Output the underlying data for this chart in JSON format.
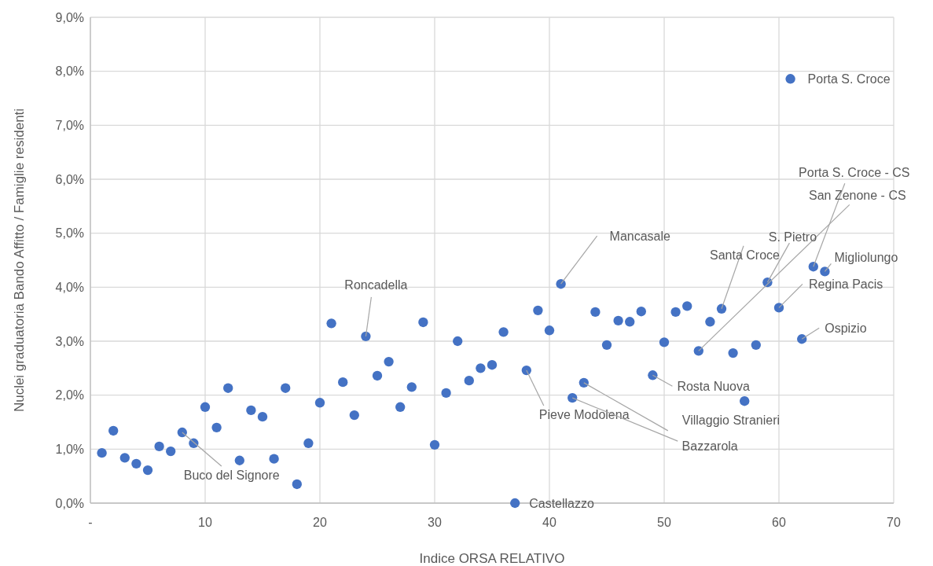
{
  "chart_data": {
    "type": "scatter",
    "xlabel": "Indice ORSA RELATIVO",
    "ylabel": "Nuclei graduatoria Bando Affitto / Famiglie residenti",
    "x": [
      1,
      2,
      3,
      4,
      5,
      6,
      7,
      8,
      9,
      10,
      11,
      12,
      13,
      14,
      15,
      16,
      17,
      18,
      19,
      20,
      21,
      22,
      23,
      24,
      25,
      26,
      27,
      28,
      29,
      30,
      31,
      32,
      33,
      34,
      35,
      36,
      37,
      38,
      39,
      40,
      41,
      42,
      43,
      44,
      45,
      46,
      47,
      48,
      49,
      50,
      51,
      52,
      53,
      54,
      55,
      56,
      57,
      58,
      59,
      60,
      61,
      62,
      63,
      64
    ],
    "values": [
      0.93,
      1.34,
      0.84,
      0.73,
      0.61,
      1.05,
      0.96,
      1.31,
      1.11,
      1.78,
      1.4,
      2.13,
      0.79,
      1.72,
      1.6,
      0.82,
      2.13,
      0.35,
      1.11,
      1.86,
      3.33,
      2.24,
      1.63,
      3.09,
      2.36,
      2.62,
      1.78,
      2.15,
      3.35,
      1.08,
      2.04,
      3.0,
      2.27,
      2.5,
      2.56,
      3.17,
      0,
      2.46,
      3.57,
      3.2,
      4.06,
      1.95,
      2.23,
      3.54,
      2.93,
      3.38,
      3.36,
      3.55,
      2.37,
      2.98,
      3.54,
      3.65,
      2.82,
      3.36,
      3.6,
      2.78,
      1.89,
      2.93,
      4.09,
      3.62,
      7.86,
      3.04,
      4.38,
      4.29
    ],
    "color": "#4472c4",
    "marker": "circle",
    "grid": true,
    "xlim": [
      0,
      70
    ],
    "xticks": [
      {
        "value": 0,
        "label": "-"
      },
      10,
      20,
      30,
      40,
      50,
      60,
      70
    ],
    "ylim": [
      0,
      9
    ],
    "yticks": [
      {
        "value": 0,
        "label": "0,0%"
      },
      {
        "value": 1,
        "label": "1,0%"
      },
      {
        "value": 2,
        "label": "2,0%"
      },
      {
        "value": 3,
        "label": "3,0%"
      },
      {
        "value": 4,
        "label": "4,0%"
      },
      {
        "value": 5,
        "label": "5,0%"
      },
      {
        "value": 6,
        "label": "6,0%"
      },
      {
        "value": 7,
        "label": "7,0%"
      },
      {
        "value": 8,
        "label": "8,0%"
      },
      {
        "value": 9,
        "label": "9,0%"
      }
    ],
    "annotations": [
      {
        "text": "Porta S. Croce",
        "x": 61,
        "y": 7.86
      },
      {
        "text": "Porta S. Croce - CS",
        "x": 63,
        "y": 4.38
      },
      {
        "text": "San Zenone - CS",
        "x": 53,
        "y": 2.82
      },
      {
        "text": "Mancasale",
        "x": 41,
        "y": 4.06
      },
      {
        "text": "S. Pietro",
        "x": 59,
        "y": 4.09
      },
      {
        "text": "Santa Croce",
        "x": 55,
        "y": 3.6
      },
      {
        "text": "Migliolungo",
        "x": 64,
        "y": 4.29
      },
      {
        "text": "Regina Pacis",
        "x": 60,
        "y": 3.62
      },
      {
        "text": "Ospizio",
        "x": 62,
        "y": 3.04
      },
      {
        "text": "Rosta Nuova",
        "x": 49,
        "y": 2.37
      },
      {
        "text": "Pieve Modolena",
        "x": 38,
        "y": 2.46
      },
      {
        "text": "Villaggio Stranieri",
        "x": 43,
        "y": 2.23
      },
      {
        "text": "Bazzarola",
        "x": 42,
        "y": 1.95
      },
      {
        "text": "Buco del Signore",
        "x": 8,
        "y": 1.31
      },
      {
        "text": "Roncadella",
        "x": 24,
        "y": 3.09
      },
      {
        "text": "Castellazzo",
        "x": 37,
        "y": 0
      }
    ]
  }
}
